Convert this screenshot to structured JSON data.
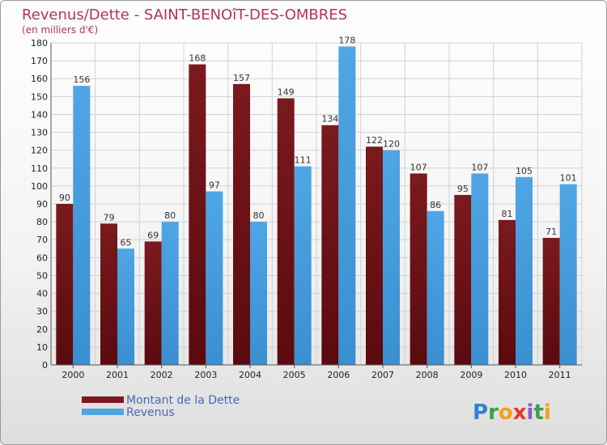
{
  "chart_data": {
    "type": "bar",
    "title": "Revenus/Dette - SAINT-BENOîT-DES-OMBRES",
    "subtitle": "(en milliers d'€)",
    "categories": [
      "2000",
      "2001",
      "2002",
      "2003",
      "2004",
      "2005",
      "2006",
      "2007",
      "2008",
      "2009",
      "2010",
      "2011"
    ],
    "series": [
      {
        "name": "Montant de la Dette",
        "color": "#7a1a1e",
        "values": [
          90,
          79,
          69,
          168,
          157,
          149,
          134,
          122,
          107,
          95,
          81,
          71
        ]
      },
      {
        "name": "Revenus",
        "color": "#4fa6e4",
        "values": [
          156,
          65,
          80,
          97,
          80,
          111,
          178,
          120,
          86,
          107,
          105,
          101
        ]
      }
    ],
    "ylim": [
      0,
      180
    ],
    "ytick_step": 10,
    "grid": true,
    "legend_position": "bottom-left"
  },
  "logo": {
    "letters": [
      {
        "ch": "P",
        "color": "#2f7fd6"
      },
      {
        "ch": "r",
        "color": "#3aa04a"
      },
      {
        "ch": "o",
        "color": "#f0a020"
      },
      {
        "ch": "x",
        "color": "#e03a2a"
      },
      {
        "ch": "i",
        "color": "#8a5cc4"
      },
      {
        "ch": "t",
        "color": "#3aa04a"
      },
      {
        "ch": "i",
        "color": "#f0a020"
      }
    ]
  }
}
